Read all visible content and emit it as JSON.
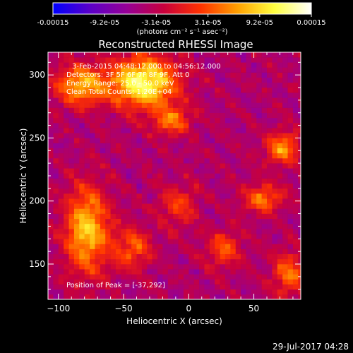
{
  "chart_data": {
    "type": "heatmap",
    "title": "Reconstructed RHESSI Image",
    "xlabel": "Heliocentric X (arcsec)",
    "ylabel": "Heliocentric Y (arcsec)",
    "xlim": [
      -108,
      86
    ],
    "ylim": [
      122,
      318
    ],
    "x_ticks": [
      -100,
      -50,
      0,
      50
    ],
    "y_ticks": [
      150,
      200,
      250,
      300
    ],
    "colorbar": {
      "ticks": [
        "-0.00015",
        "-9.2e-05",
        "-3.1e-05",
        "3.1e-05",
        "9.2e-05",
        "0.00015"
      ],
      "range": [
        -0.00015,
        0.00015
      ],
      "unit_label": "(photons cm⁻² s⁻¹ asec⁻²)",
      "colors": [
        "#0000ff",
        "#5a00c8",
        "#960096",
        "#c8003c",
        "#ff3200",
        "#ffa000",
        "#ffff40",
        "#ffffff"
      ]
    },
    "annotations": [
      "3-Feb-2015 04:48:12.000 to 04:56:12.000",
      "Detectors: 3F 5F 6F 7F 8F 9F, Att 0",
      "Energy Range: 25.0 - 50.0 keV",
      "Clean    Total Counts: 1.20E+04"
    ],
    "peak_label": "Position of Peak = [-37,292]",
    "peak": {
      "x": -37,
      "y": 292
    },
    "sources": [
      {
        "x": -37,
        "y": 292,
        "sx": 18,
        "sy": 14,
        "amp": 1.0
      },
      {
        "x": -85,
        "y": 290,
        "sx": 13,
        "sy": 11,
        "amp": 0.7
      },
      {
        "x": -15,
        "y": 262,
        "sx": 10,
        "sy": 8,
        "amp": 0.5
      },
      {
        "x": -80,
        "y": 175,
        "sx": 12,
        "sy": 24,
        "amp": 0.75
      },
      {
        "x": -45,
        "y": 160,
        "sx": 10,
        "sy": 12,
        "amp": 0.45
      },
      {
        "x": 70,
        "y": 240,
        "sx": 9,
        "sy": 9,
        "amp": 0.6
      },
      {
        "x": 55,
        "y": 200,
        "sx": 10,
        "sy": 8,
        "amp": 0.55
      },
      {
        "x": 75,
        "y": 140,
        "sx": 9,
        "sy": 12,
        "amp": 0.5
      },
      {
        "x": 25,
        "y": 160,
        "sx": 9,
        "sy": 10,
        "amp": 0.45
      },
      {
        "x": -10,
        "y": 195,
        "sx": 10,
        "sy": 12,
        "amp": 0.35
      }
    ]
  },
  "footer": {
    "timestamp": "29-Jul-2017 04:28"
  }
}
